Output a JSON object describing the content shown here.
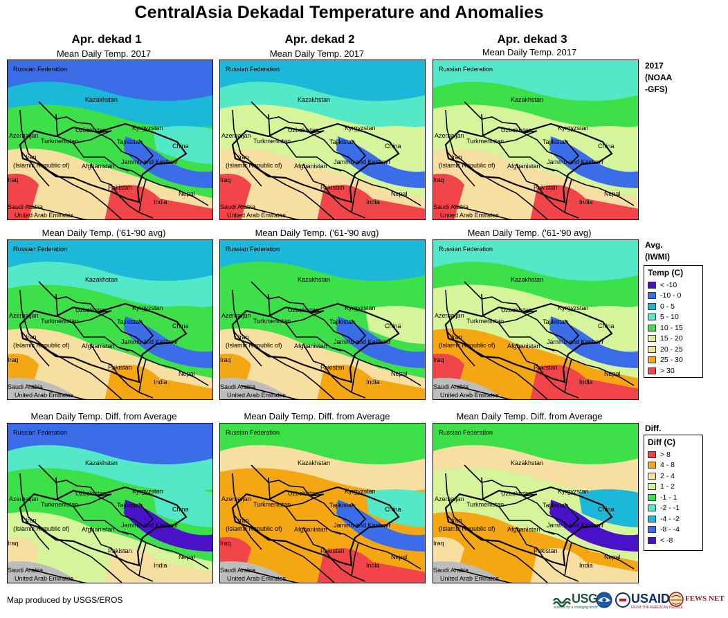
{
  "title": "CentralAsia Dekadal Temperature and Anomalies",
  "columns": [
    "Apr. dekad 1",
    "Apr. dekad 2",
    "Apr. dekad 3"
  ],
  "row_captions": [
    [
      "Mean Daily Temp. 2017",
      "Mean Daily Temp. 2017",
      "Mean Daily Temp. 2017"
    ],
    [
      "Mean Daily Temp. ('61-'90 avg)",
      "Mean Daily Temp. ('61-'90 avg)",
      "Mean Daily Temp. ('61-'90 avg)"
    ],
    [
      "Mean Daily Temp. Diff. from Average",
      "Mean Daily Temp. Diff. from Average",
      "Mean Daily Temp. Diff. from Average"
    ]
  ],
  "side_labels": {
    "row1": [
      "2017",
      "(NOAA",
      "-GFS)"
    ],
    "row2": [
      "Avg.",
      "(IWMI)"
    ],
    "row3": [
      "Diff."
    ]
  },
  "map_labels": {
    "russia": "Russian Federation",
    "kazakhstan": "Kazakhstan",
    "uzbekistan": "Uzbekistan",
    "kyrgyzstan": "Kyrgyzstan",
    "azerbaijan": "Azerbaijan",
    "turkmenistan": "Turkmenistan",
    "tajikistan": "Tajikistan",
    "china": "China",
    "iran1": "Iran",
    "iran2": "(Islamic Republic of)",
    "afghanistan": "Afghanistan",
    "jammu": "Jammu and Kashmir",
    "iraq": "Iraq",
    "pakistan": "Pakistan",
    "nepal": "Nepal",
    "india": "India",
    "saudi": "Saudi Arabia",
    "uae": "United Arab Emirates"
  },
  "temp_legend": {
    "title": "Temp (C)",
    "items": [
      {
        "label": "< -10",
        "color": "#4a12c8"
      },
      {
        "label": "-10 - 0",
        "color": "#3b6de8"
      },
      {
        "label": "0 - 5",
        "color": "#1bb8d9"
      },
      {
        "label": "5 - 10",
        "color": "#52e8c8"
      },
      {
        "label": "10 - 15",
        "color": "#3ee04a"
      },
      {
        "label": "15 - 20",
        "color": "#d6f59a"
      },
      {
        "label": "20 - 25",
        "color": "#f6dfa0"
      },
      {
        "label": "25 - 30",
        "color": "#f4a613"
      },
      {
        "label": "> 30",
        "color": "#f2454a"
      }
    ]
  },
  "diff_legend": {
    "title": "Diff (C)",
    "items": [
      {
        "label": "> 8",
        "color": "#f2454a"
      },
      {
        "label": "4 - 8",
        "color": "#f4a613"
      },
      {
        "label": "2 - 4",
        "color": "#f6dfa0"
      },
      {
        "label": "1 - 2",
        "color": "#d6f59a"
      },
      {
        "label": "-1 - 1",
        "color": "#3ee04a"
      },
      {
        "label": "-2 - -1",
        "color": "#52e8c8"
      },
      {
        "label": "-4 - -2",
        "color": "#1bb8d9"
      },
      {
        "label": "-8 - -4",
        "color": "#3b6de8"
      },
      {
        "label": "< -8",
        "color": "#4a12c8"
      }
    ]
  },
  "maps": [
    {
      "row": 0,
      "col": 0,
      "north": "#3b6de8",
      "kaz": "#1bb8d9",
      "mid": "#3ee04a",
      "south": "#f6dfa0",
      "hot": "#f2454a",
      "china": "#52e8c8",
      "tibet": "#3b6de8"
    },
    {
      "row": 0,
      "col": 1,
      "north": "#1bb8d9",
      "kaz": "#52e8c8",
      "mid": "#d6f59a",
      "south": "#f6dfa0",
      "hot": "#f2454a",
      "china": "#d6f59a",
      "tibet": "#3b6de8"
    },
    {
      "row": 0,
      "col": 2,
      "north": "#52e8c8",
      "kaz": "#3ee04a",
      "mid": "#d6f59a",
      "south": "#f6dfa0",
      "hot": "#f2454a",
      "china": "#d6f59a",
      "tibet": "#3b6de8"
    },
    {
      "row": 1,
      "col": 0,
      "north": "#1bb8d9",
      "kaz": "#52e8c8",
      "mid": "#3ee04a",
      "south": "#f6dfa0",
      "hot": "#f4a613",
      "china": "#3ee04a",
      "tibet": "#3b6de8"
    },
    {
      "row": 1,
      "col": 1,
      "north": "#1bb8d9",
      "kaz": "#3ee04a",
      "mid": "#3ee04a",
      "south": "#f6dfa0",
      "hot": "#f4a613",
      "china": "#d6f59a",
      "tibet": "#3b6de8"
    },
    {
      "row": 1,
      "col": 2,
      "north": "#52e8c8",
      "kaz": "#3ee04a",
      "mid": "#d6f59a",
      "south": "#f4a613",
      "hot": "#f2454a",
      "china": "#d6f59a",
      "tibet": "#3b6de8"
    },
    {
      "row": 2,
      "col": 0,
      "north": "#3b6de8",
      "kaz": "#52e8c8",
      "mid": "#3ee04a",
      "south": "#d6f59a",
      "hot": "#f6dfa0",
      "china": "#52e8c8",
      "tibet": "#4a12c8"
    },
    {
      "row": 2,
      "col": 1,
      "north": "#3ee04a",
      "kaz": "#f6dfa0",
      "mid": "#f4a613",
      "south": "#f4a613",
      "hot": "#f2454a",
      "china": "#52e8c8",
      "tibet": "#3b6de8"
    },
    {
      "row": 2,
      "col": 2,
      "north": "#3ee04a",
      "kaz": "#f6dfa0",
      "mid": "#d6f59a",
      "south": "#f4a613",
      "hot": "#f6dfa0",
      "china": "#1bb8d9",
      "tibet": "#4a12c8"
    }
  ],
  "credit": "Map produced by USGS/EROS",
  "logos": {
    "usgs": "USGS",
    "usgs_tagline": "science for a changing world",
    "usaid": "USAID",
    "usaid_tagline": "FROM THE AMERICAN PEOPLE",
    "fews": "FEWS NET"
  }
}
